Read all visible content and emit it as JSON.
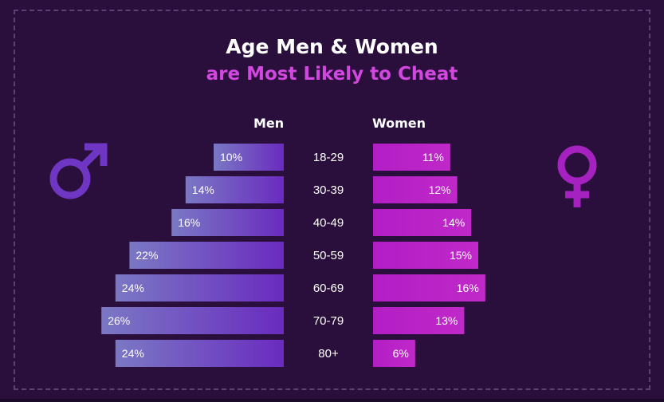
{
  "title": "Age Men & Women",
  "subtitle": "are Most Likely to Cheat",
  "colors": {
    "background": "#2a0f3c",
    "men_light": "#7a78c4",
    "men_dark": "#6a2bbf",
    "women": "#b21ec6",
    "subtitle": "#d247e0",
    "male_icon": "#6f35c3",
    "female_icon": "#a622c0"
  },
  "icons": {
    "male": "male-symbol-icon",
    "female": "female-symbol-icon"
  },
  "chart_data": {
    "type": "bar",
    "orientation": "horizontal-population-pyramid",
    "categories": [
      "18-29",
      "30-39",
      "40-49",
      "50-59",
      "60-69",
      "70-79",
      "80+"
    ],
    "series": [
      {
        "name": "Men",
        "values": [
          10,
          14,
          16,
          22,
          24,
          26,
          24
        ],
        "labels": [
          "10%",
          "14%",
          "16%",
          "22%",
          "24%",
          "26%",
          "24%"
        ]
      },
      {
        "name": "Women",
        "values": [
          11,
          12,
          14,
          15,
          16,
          13,
          6
        ],
        "labels": [
          "11%",
          "12%",
          "14%",
          "15%",
          "16%",
          "13%",
          "6%"
        ]
      }
    ],
    "unit": "%",
    "grid": false
  }
}
